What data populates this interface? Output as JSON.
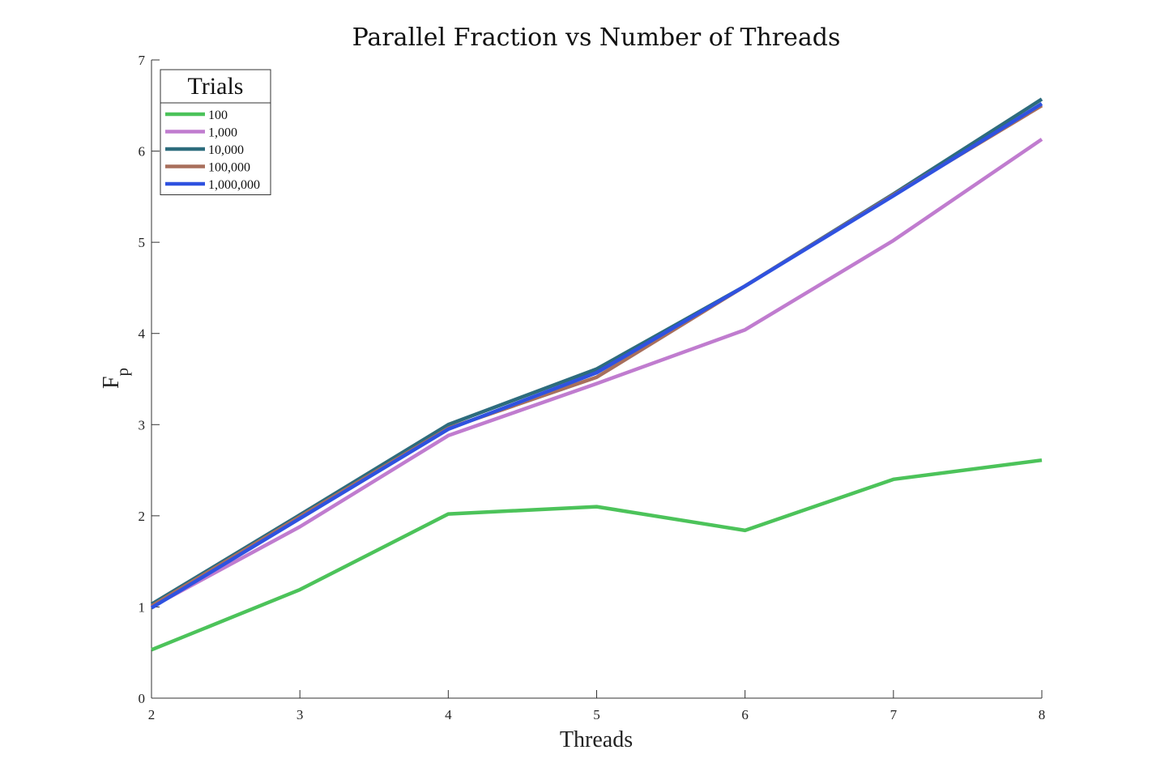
{
  "chart_data": {
    "type": "line",
    "title": "Parallel Fraction vs Number of Threads",
    "xlabel": "Threads",
    "ylabel": "F",
    "ylabel_sub": "p",
    "x": [
      2,
      3,
      4,
      5,
      6,
      7,
      8
    ],
    "xlim": [
      2,
      8
    ],
    "ylim": [
      0,
      7
    ],
    "xticks": [
      "2",
      "3",
      "4",
      "5",
      "6",
      "7",
      "8"
    ],
    "yticks": [
      "0",
      "1",
      "2",
      "3",
      "4",
      "5",
      "6",
      "7"
    ],
    "grid": false,
    "legend": {
      "title": "Trials",
      "position": "top-left"
    },
    "series": [
      {
        "name": "100",
        "color": "#4cc35a",
        "values": [
          0.53,
          1.19,
          2.02,
          2.1,
          1.84,
          2.4,
          2.61
        ]
      },
      {
        "name": "1,000",
        "color": "#c07ccf",
        "values": [
          1.0,
          1.88,
          2.88,
          3.45,
          4.04,
          5.02,
          6.13
        ]
      },
      {
        "name": "10,000",
        "color": "#2d6c7d",
        "values": [
          1.03,
          2.01,
          3.0,
          3.61,
          4.52,
          5.53,
          6.57
        ]
      },
      {
        "name": "100,000",
        "color": "#a86f5c",
        "values": [
          1.01,
          1.99,
          2.96,
          3.52,
          4.52,
          5.52,
          6.5
        ]
      },
      {
        "name": "1,000,000",
        "color": "#2f52e0",
        "values": [
          0.99,
          1.97,
          2.95,
          3.57,
          4.52,
          5.51,
          6.52
        ]
      }
    ]
  }
}
